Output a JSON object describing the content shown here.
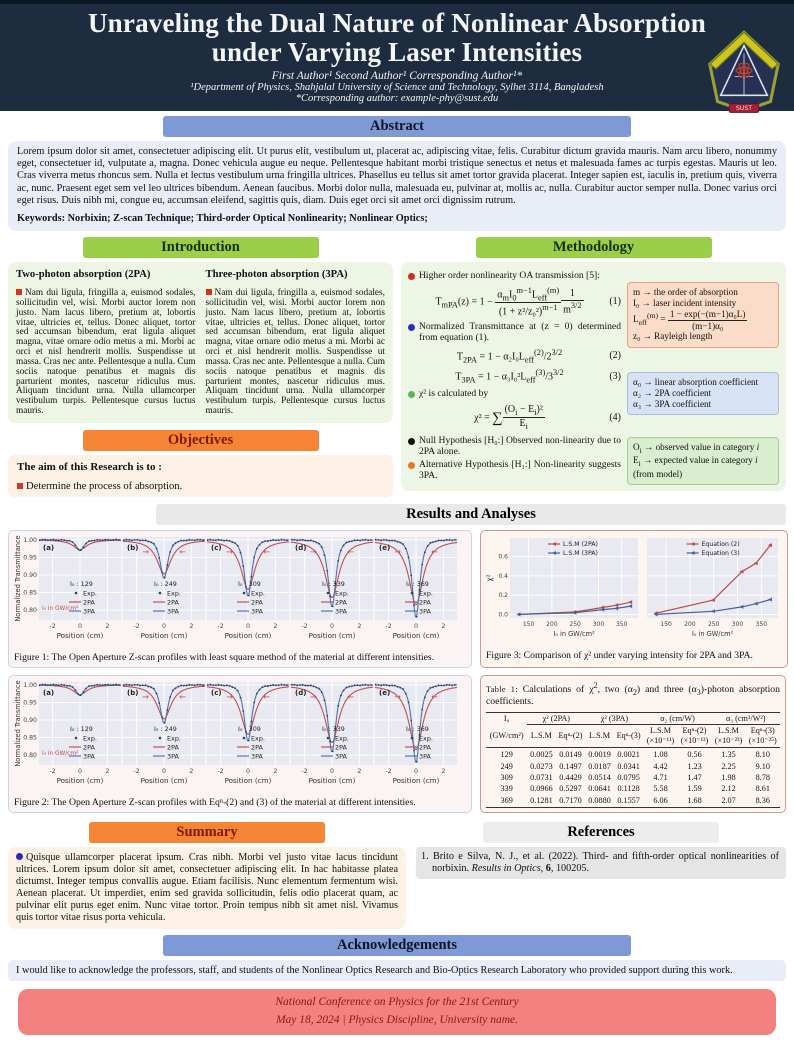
{
  "colors": {
    "header_navy": "#1d2c3e",
    "bar_blue": "#7e99d5",
    "bar_green": "#9ccf49",
    "bar_orange": "#f58434",
    "bar_gray": "#e9e9e9",
    "footer_salmon": "#f58080",
    "line_2pa_red": "#c0504d",
    "line_3pa_blue": "#4c72b0",
    "exp_dot_navy": "#2f3e68",
    "plot_bg": "#e9eaf1"
  },
  "poster": {
    "title": "Unraveling the Dual Nature of Nonlinear Absorption under Varying Laser Intensities",
    "authors": "First Author¹   Second Author¹   Corresponding Author¹*",
    "affiliation": "¹Department of Physics, Shahjalal University of Science and Technology, Sylhet 3114, Bangladesh",
    "contact": "*Corresponding author: example-phy@sust.edu",
    "logo_text": "SUST"
  },
  "abstract": {
    "title": "Abstract",
    "body": "Lorem ipsum dolor sit amet, consectetuer adipiscing elit. Ut purus elit, vestibulum ut, placerat ac, adipiscing vitae, felis. Curabitur dictum gravida mauris. Nam arcu libero, nonummy eget, consectetuer id, vulputate a, magna. Donec vehicula augue eu neque. Pellentesque habitant morbi tristique senectus et netus et malesuada fames ac turpis egestas. Mauris ut leo. Cras viverra metus rhoncus sem. Nulla et lectus vestibulum urna fringilla ultrices. Phasellus eu tellus sit amet tortor gravida placerat. Integer sapien est, iaculis in, pretium quis, viverra ac, nunc. Praesent eget sem vel leo ultrices bibendum. Aenean faucibus. Morbi dolor nulla, malesuada eu, pulvinar at, mollis ac, nulla. Curabitur auctor semper nulla. Donec varius orci eget risus. Duis nibh mi, congue eu, accumsan eleifend, sagittis quis, diam. Duis eget orci sit amet orci dignissim rutrum.",
    "keywords_line": "Keywords: Norbixin; Z-scan Technique; Third-order Optical Nonlinearity; Nonlinear Optics;"
  },
  "introduction": {
    "title": "Introduction",
    "columns": [
      {
        "heading": "Two-photon absorption (2PA)",
        "text": "Nam dui ligula, fringilla a, euismod sodales, sollicitudin vel, wisi. Morbi auctor lorem non justo. Nam lacus libero, pretium at, lobortis vitae, ultricies et, tellus. Donec aliquet, tortor sed accumsan bibendum, erat ligula aliquet magna, vitae ornare odio metus a mi. Morbi ac orci et nisl hendrerit mollis. Suspendisse ut massa. Cras nec ante. Pellentesque a nulla. Cum sociis natoque penatibus et magnis dis parturient montes, nascetur ridiculus mus. Aliquam tincidunt urna. Nulla ullamcorper vestibulum turpis. Pellentesque cursus luctus mauris."
      },
      {
        "heading": "Three-photon absorption (3PA)",
        "text": "Nam dui ligula, fringilla a, euismod sodales, sollicitudin vel, wisi. Morbi auctor lorem non justo. Nam lacus libero, pretium at, lobortis vitae, ultricies et, tellus. Donec aliquet, tortor sed accumsan bibendum, erat ligula aliquet magna, vitae ornare odio metus a mi. Morbi ac orci et nisl hendrerit mollis. Suspendisse ut massa. Cras nec ante. Pellentesque a nulla. Cum sociis natoque penatibus et magnis dis parturient montes, nascetur ridiculus mus. Aliquam tincidunt urna. Nulla ullamcorper vestibulum turpis. Pellentesque cursus luctus mauris."
      }
    ]
  },
  "objectives": {
    "title": "Objectives",
    "lead": "The aim of this Research is to :",
    "items": [
      "Determine the process of absorption."
    ]
  },
  "methodology": {
    "title": "Methodology",
    "items": [
      {
        "type": "bullet",
        "color": "#d42a20",
        "html": "Higher order nonlinearity OA transmission [5]:"
      },
      {
        "type": "eq",
        "number": "(1)",
        "html": "T<sub>mPA</sub>(z) = 1 − <span class='frac'><span class='num'>α<sub>m</sub>I<sub>0</sub><sup>m−1</sup>L<sub>eff</sub><sup>(m)</sup></span><span class='den'>(1 + z²/z₀²)<sup>m−1</sup></span></span><span class='frac'><span class='num'>1</span><span class='den'>m<sup>3/2</sup></span></span>"
      },
      {
        "type": "bullet",
        "color": "#2c2cc4",
        "html": "Normalized Transmittance at (z = 0) determined from equation (1)."
      },
      {
        "type": "eq",
        "number": "(2)",
        "html": "T<sub>2PA</sub> = 1 − α₂I₀L<sub>eff</sub><sup>(2)</sup>/2<sup>3/2</sup>"
      },
      {
        "type": "eq",
        "number": "(3)",
        "html": "T<sub>3PA</sub> = 1 − α₃I₀²L<sub>eff</sub><sup>(3)</sup>/3<sup>3/2</sup>"
      },
      {
        "type": "bullet",
        "color": "#5cb85c",
        "html": "χ² is calculated by"
      },
      {
        "type": "eq",
        "number": "(4)",
        "html": "χ² = <span class='sum'>∑</span><span class='frac'><span class='num'>(O<sub>i</sub> − E<sub>i</sub>)²</span><span class='den'>E<sub>i</sub></span></span>"
      },
      {
        "type": "bullet",
        "color": "#111111",
        "html": "Null Hypothesis [H₀:] Observed non-linearity due to 2PA alone."
      },
      {
        "type": "bullet",
        "color": "#e8762d",
        "html": "Alternative Hypothesis [H₁:] Non-linearity sug&#8203;gests 3PA."
      }
    ],
    "sideboxes": [
      {
        "bg": "#fbdcc9",
        "border": "#e2a384",
        "mt": 14,
        "html": "m → the order of absorption<br>I₀ → laser incident intensity<br>L<sub>eff</sub><sup>(m)</sup> = <span class='frac'><span class='num'>1 − exp(−(m−1)α₀L)</span><span class='den'>(m−1)α₀</span></span><br>z₀ → Rayleigh length"
      },
      {
        "bg": "#d7e3f4",
        "border": "#a9bede",
        "mt": 24,
        "html": "α₀ → linear absorption coefficient<br>α₂ → 2PA coefficient<br>α₃ → 3PA coefficient"
      },
      {
        "bg": "#d9edcf",
        "border": "#a6cd93",
        "mt": 22,
        "html": "O<sub>i</sub> → observed value in category <i>i</i><br>E<sub>i</sub> → expected value in category <i>i</i> (from model)"
      }
    ]
  },
  "results": {
    "title": "Results and Analyses",
    "table": {
      "caption_html": "<span class='tbl-label'>Table 1: </span>Calculations of χ<sup>2</sup>, two (α<sub>2</sub>) and three (α<sub>3</sub>)-photon absorption coefficients.",
      "group_headers": [
        "I₀",
        "χ² (2PA)",
        "χ² (3PA)",
        "α₂ (cm/W)",
        "α₃ (cm³/W²)"
      ],
      "sub_headers": [
        "(GW/cm²)",
        "L.S.M",
        "Eqⁿ-(2)",
        "L.S.M",
        "Eqⁿ-(3)",
        "L.S.M<br>(×10⁻¹¹)",
        "Eqⁿ-(2)<br>(×10⁻¹³)",
        "L.S.M<br>(×10⁻²³)",
        "Eqⁿ-(3)<br>(×10⁻²⁵)"
      ],
      "rows": [
        [
          "129",
          "0.0025",
          "0.0149",
          "0.0019",
          "0.0021",
          "1.08",
          "0.56",
          "1.35",
          "8.10"
        ],
        [
          "249",
          "0.0273",
          "0.1497",
          "0.0187",
          "0.0341",
          "4.42",
          "1.23",
          "2.25",
          "9.10"
        ],
        [
          "309",
          "0.0731",
          "0.4429",
          "0.0514",
          "0.0795",
          "4.71",
          "1.47",
          "1.98",
          "8.78"
        ],
        [
          "339",
          "0.0966",
          "0.5297",
          "0.0641",
          "0.1128",
          "5.58",
          "1.59",
          "2.12",
          "8.61"
        ],
        [
          "369",
          "0.1281",
          "0.7170",
          "0.0880",
          "0.1557",
          "6.06",
          "1.68",
          "2.07",
          "8.36"
        ]
      ]
    }
  },
  "summary": {
    "title": "Summary",
    "text": "Quisque ullamcorper placerat ipsum. Cras nibh. Morbi vel justo vitae lacus tincidunt ultrices. Lorem ipsum dolor sit amet, consectetuer adipiscing elit. In hac habitasse platea dictumst. Integer tempus convallis augue. Etiam facilisis. Nunc elementum fermentum wisi. Aenean placerat. Ut imperdiet, enim sed gravida sollicitudin, felis odio placerat quam, ac pulvinar elit purus eget enim. Nunc vitae tortor. Proin tempus nibh sit amet nisl. Vivamus quis tortor vitae risus porta vehicula."
  },
  "references": {
    "title": "References",
    "items_html": [
      "1. Brito e Silva, N. J., et al. (2022). Third- and fifth-order optical nonlinearities of norbixin. <i>Results in Optics</i>, <b>6</b>, 100205."
    ]
  },
  "acknowledgements": {
    "title": "Acknowledgements",
    "text": "I would like to acknowledge the professors, staff, and students of the Nonlinear Optics Research and Bio-Optics Research Laboratory who provided support during this work."
  },
  "footer": {
    "line1": "National Conference on Physics for the 21st Century",
    "line2": "May 18, 2024  | Physics Discipline, University name."
  },
  "chart_data": [
    {
      "type": "line",
      "id": "fig1",
      "name": "open-aperture-zscan-lsm",
      "caption": "Figure 1: The Open Aperture Z-scan profiles with least square method of the material at different intensities.",
      "xlabel": "Position (cm)",
      "ylabel": "Normalized Transmittance",
      "xlim": [
        -3,
        3
      ],
      "ylim": [
        0.772,
        1.008
      ],
      "xticks": [
        -2,
        0,
        2
      ],
      "yticks": [
        1.0,
        0.95,
        0.9,
        0.85,
        0.8
      ],
      "grid": true,
      "legend": [
        "Exp.",
        "2PA",
        "3PA"
      ],
      "legend_title_prefix": "I₀ : ",
      "note": "I₀ in GW/cm²",
      "colors": [
        "#c0504d",
        "#4c72b0"
      ],
      "panels": [
        {
          "label": "(a)",
          "I0": 129,
          "min_3PA": 0.969,
          "min_2PA": 0.972,
          "arrows": false
        },
        {
          "label": "(b)",
          "I0": 249,
          "min_3PA": 0.89,
          "min_2PA": 0.903,
          "arrows": true
        },
        {
          "label": "(c)",
          "I0": 309,
          "min_3PA": 0.839,
          "min_2PA": 0.859,
          "arrows": true
        },
        {
          "label": "(d)",
          "I0": 339,
          "min_3PA": 0.808,
          "min_2PA": 0.836,
          "arrows": true
        },
        {
          "label": "(e)",
          "I0": 369,
          "min_3PA": 0.778,
          "min_2PA": 0.815,
          "arrows": true
        }
      ]
    },
    {
      "type": "line",
      "id": "fig2",
      "name": "open-aperture-zscan-eqn",
      "caption": "Figure 2: The Open Aperture Z-scan profiles with Eqⁿ-(2) and (3) of the material at different intensities.",
      "xlabel": "Position (cm)",
      "ylabel": "Normalized Transmittance",
      "xlim": [
        -3,
        3
      ],
      "ylim": [
        0.772,
        1.008
      ],
      "xticks": [
        -2,
        0,
        2
      ],
      "yticks": [
        1.0,
        0.95,
        0.9,
        0.85,
        0.8
      ],
      "grid": true,
      "legend": [
        "Exp.",
        "2PA",
        "3PA"
      ],
      "legend_title_prefix": "I₀ : ",
      "note": "I₀ in GW/cm²",
      "colors": [
        "#c0504d",
        "#4c72b0"
      ],
      "panels": [
        {
          "label": "(a)",
          "I0": 129,
          "min_3PA": 0.969,
          "min_2PA": 0.972,
          "arrows": false
        },
        {
          "label": "(b)",
          "I0": 249,
          "min_3PA": 0.89,
          "min_2PA": 0.903,
          "arrows": true
        },
        {
          "label": "(c)",
          "I0": 309,
          "min_3PA": 0.839,
          "min_2PA": 0.859,
          "arrows": true
        },
        {
          "label": "(d)",
          "I0": 339,
          "min_3PA": 0.808,
          "min_2PA": 0.836,
          "arrows": true
        },
        {
          "label": "(e)",
          "I0": 369,
          "min_3PA": 0.778,
          "min_2PA": 0.815,
          "arrows": true
        }
      ]
    },
    {
      "type": "line",
      "id": "fig3",
      "name": "chi-squared-comparison",
      "caption": "Figure 3: Comparison of χ² under varying intensity for 2PA and 3PA.",
      "x": [
        129,
        249,
        309,
        339,
        369
      ],
      "xlabel": "I₀ in GW/cm²",
      "ylabel": "χ²",
      "xlim": [
        110,
        385
      ],
      "ylim": [
        -0.035,
        0.79
      ],
      "xticks": [
        150,
        200,
        250,
        300,
        350
      ],
      "yticks": [
        0.0,
        0.2,
        0.4,
        0.6
      ],
      "grid": true,
      "colors": [
        "#b94a48",
        "#46629e"
      ],
      "subplots": [
        {
          "series": [
            {
              "name": "L.S.M (2PA)",
              "values": [
                0.0025,
                0.0273,
                0.0731,
                0.0966,
                0.1281
              ]
            },
            {
              "name": "L.S.M (3PA)",
              "values": [
                0.0019,
                0.0187,
                0.0514,
                0.0641,
                0.088
              ]
            }
          ]
        },
        {
          "series": [
            {
              "name": "Equation (2)",
              "values": [
                0.0149,
                0.1497,
                0.4429,
                0.5297,
                0.717
              ]
            },
            {
              "name": "Equation (3)",
              "values": [
                0.0021,
                0.0341,
                0.0795,
                0.1128,
                0.1557
              ]
            }
          ]
        }
      ]
    }
  ]
}
